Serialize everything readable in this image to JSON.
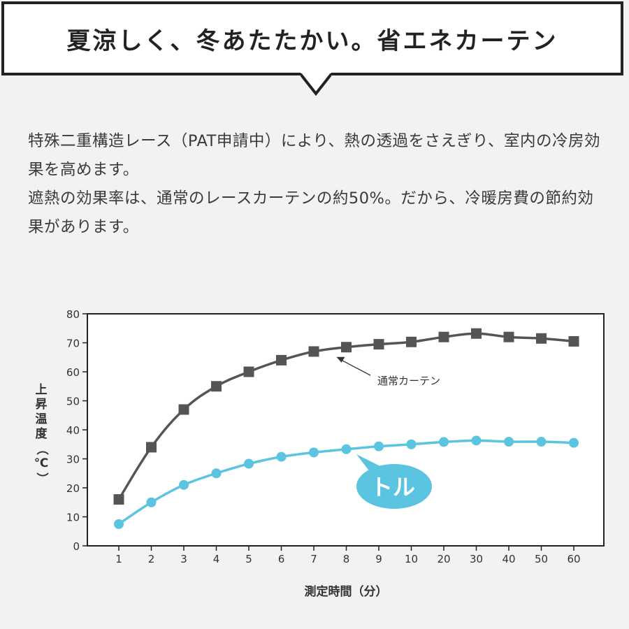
{
  "headline": "夏涼しく、冬あたたかい。省エネカーテン",
  "paragraphs": [
    "特殊二重構造レース（PAT申請中）により、熱の透過をさえぎり、室内の冷房効果を高めます。",
    "遮熱の効果率は、通常のレースカーテンの約50%。だから、冷暖房費の節約効果があります。"
  ],
  "chart_data": {
    "type": "line",
    "categories": [
      "1",
      "2",
      "3",
      "4",
      "5",
      "6",
      "7",
      "8",
      "9",
      "10",
      "20",
      "30",
      "40",
      "50",
      "60"
    ],
    "series": [
      {
        "name": "通常カーテン",
        "color": "#555555",
        "marker": "square",
        "values": [
          16,
          34,
          47,
          55,
          60,
          64,
          67,
          68.5,
          69.5,
          70.3,
          72,
          73.2,
          72,
          71.5,
          70.5
        ]
      },
      {
        "name": "トル",
        "color": "#5bc4e1",
        "marker": "circle",
        "values": [
          7.5,
          15,
          21,
          25,
          28.3,
          30.7,
          32.2,
          33.3,
          34.3,
          35,
          35.8,
          36.3,
          35.9,
          35.9,
          35.5
        ]
      }
    ],
    "ylim": [
      0,
      80
    ],
    "yticks": [
      0,
      10,
      20,
      30,
      40,
      50,
      60,
      70,
      80
    ],
    "ylabel": "上昇温度（℃）",
    "xlabel": "測定時間（分）",
    "grid": false,
    "annotation_text": "通常カーテン",
    "bubble_text": "トル"
  }
}
